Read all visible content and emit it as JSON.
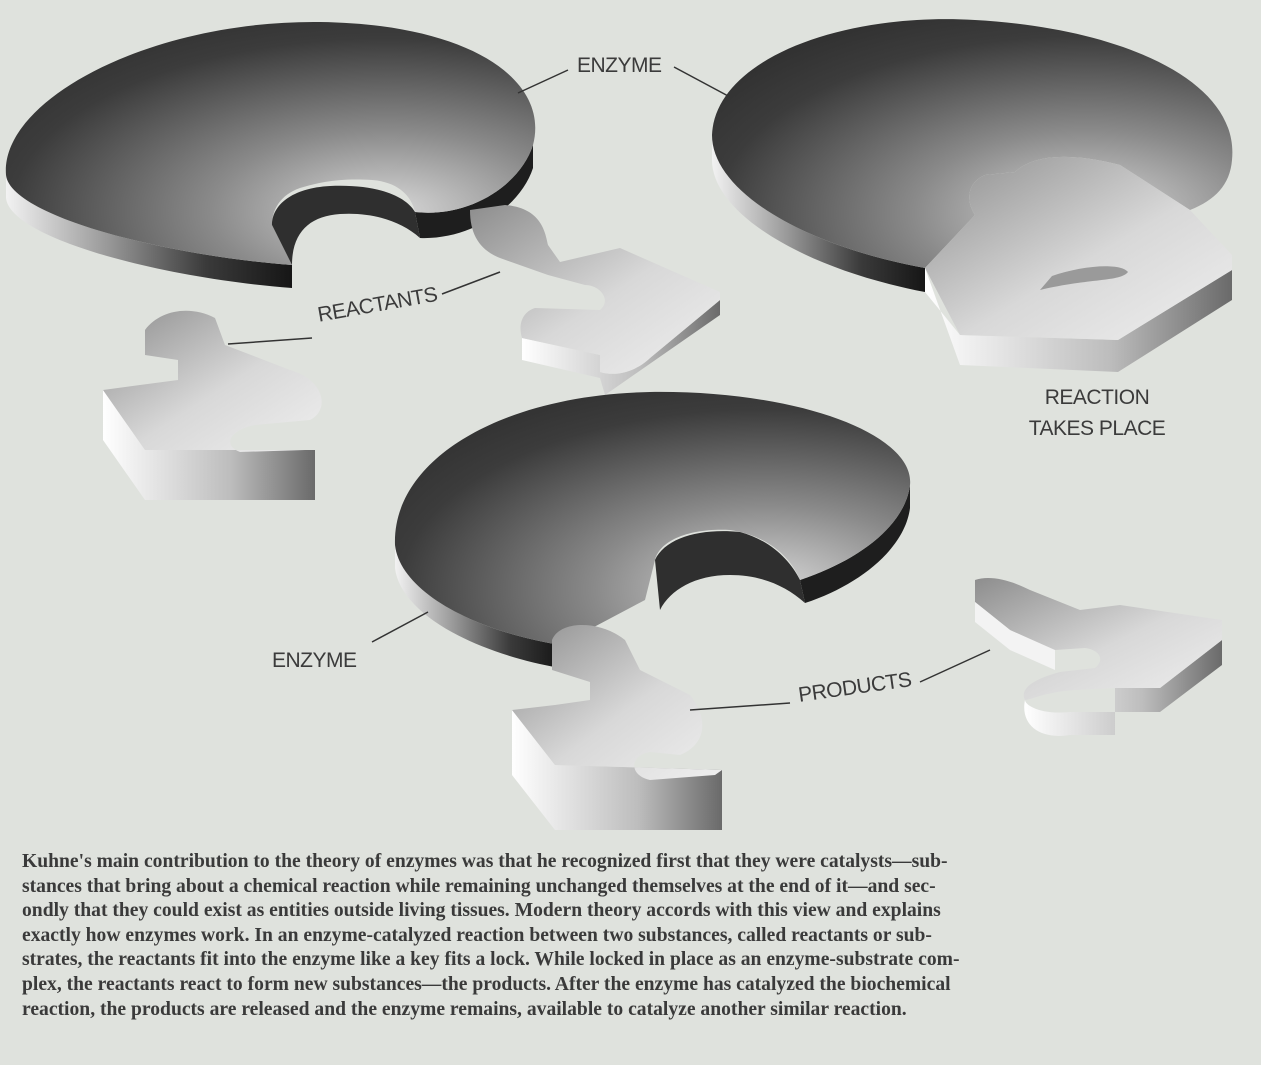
{
  "labels": {
    "enzyme_top": "ENZYME",
    "reactants": "REACTANTS",
    "reaction_line1": "REACTION",
    "reaction_line2": "TAKES PLACE",
    "enzyme_bottom": "ENZYME",
    "products": "PRODUCTS"
  },
  "caption": {
    "lines": [
      "Kuhne's main contribution to the theory of enzymes was that he recognized first that they were catalysts—sub-",
      "stances that bring about a chemical reaction while remaining unchanged themselves at the end of it—and sec-",
      "ondly that they could exist as entities outside living tissues. Modern theory accords with this view and explains",
      "exactly how enzymes work. In an enzyme-catalyzed reaction between two substances, called reactants or sub-",
      "strates, the reactants fit into the enzyme like a key fits a lock. While locked in place as an enzyme-substrate com-",
      "plex, the reactants react to form new substances—the products. After the enzyme has catalyzed the biochemical",
      "reaction, the products are released and the enzyme remains, available to catalyze another similar reaction."
    ]
  },
  "colors": {
    "background": "#dfe2dd",
    "disk_dark": "#3a3a3a",
    "disk_light": "#d7d7d7",
    "text": "#3b3b3b"
  }
}
